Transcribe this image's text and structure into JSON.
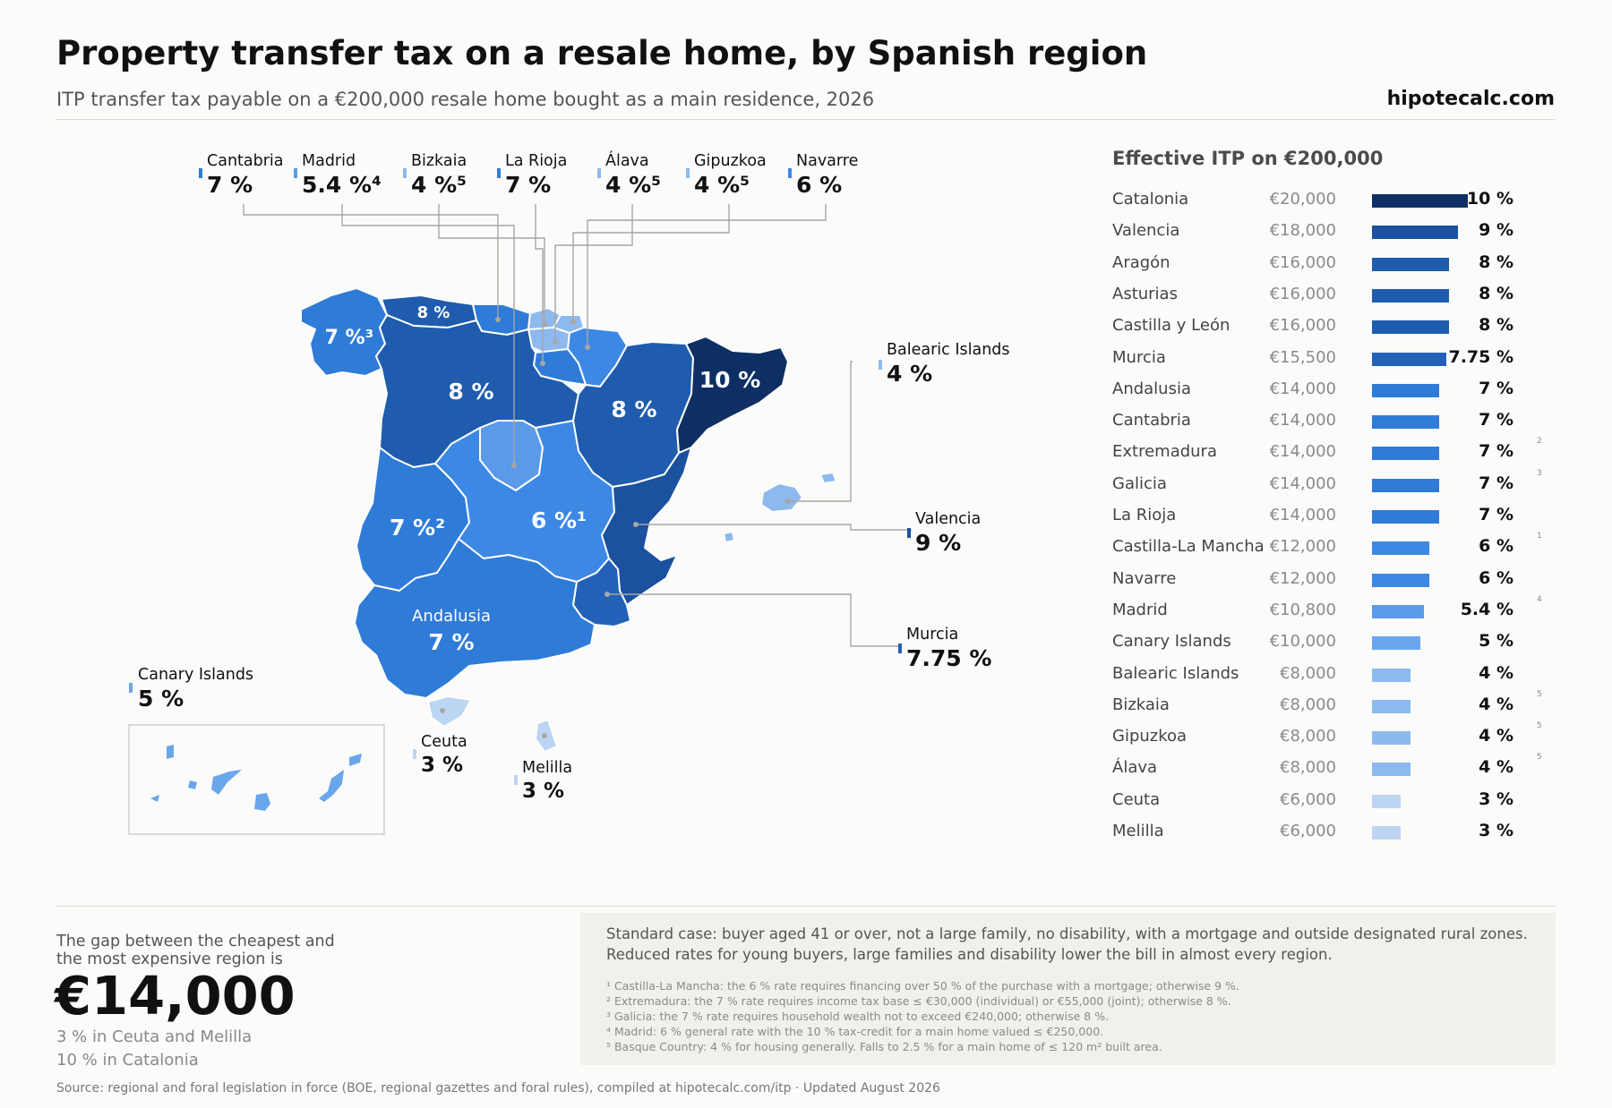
{
  "header": {
    "title": "Property transfer tax on a resale home, by Spanish region",
    "subtitle": "ITP transfer tax payable on a €200,000 resale home bought as a main residence, 2026",
    "brand": "hipotecalc.com"
  },
  "colors": {
    "10": "#0d2f63",
    "9": "#1b519e",
    "8": "#1f5cad",
    "7.75": "#2361b8",
    "7": "#2f7bd8",
    "6": "#3d88e5",
    "5.4": "#5b9ae9",
    "5": "#6aa6ec",
    "4": "#8db9ee",
    "3": "#bcd5f3"
  },
  "map": {
    "labels_on_map": [
      {
        "id": "galicia",
        "text": "7 %³"
      },
      {
        "id": "asturias",
        "text": "8 %"
      },
      {
        "id": "castilla-leon",
        "text": "8 %"
      },
      {
        "id": "aragon",
        "text": "8 %"
      },
      {
        "id": "catalonia",
        "text": "10 %"
      },
      {
        "id": "extremadura",
        "text": "7 %²"
      },
      {
        "id": "castilla-mancha",
        "text": "6 %¹"
      },
      {
        "id": "andalusia-name",
        "text": "Andalusia"
      },
      {
        "id": "andalusia",
        "text": "7 %"
      }
    ],
    "callouts": [
      {
        "name": "Cantabria",
        "rate": "7 %",
        "rate_key": "7"
      },
      {
        "name": "Madrid",
        "rate": "5.4 %⁴",
        "rate_key": "5.4"
      },
      {
        "name": "Bizkaia",
        "rate": "4 %⁵",
        "rate_key": "4"
      },
      {
        "name": "La Rioja",
        "rate": "7 %",
        "rate_key": "7"
      },
      {
        "name": "Álava",
        "rate": "4 %⁵",
        "rate_key": "4"
      },
      {
        "name": "Gipuzkoa",
        "rate": "4 %⁵",
        "rate_key": "4"
      },
      {
        "name": "Navarre",
        "rate": "6 %",
        "rate_key": "6"
      },
      {
        "name": "Balearic Islands",
        "rate": "4 %",
        "rate_key": "4"
      },
      {
        "name": "Valencia",
        "rate": "9 %",
        "rate_key": "9"
      },
      {
        "name": "Murcia",
        "rate": "7.75 %",
        "rate_key": "7.75"
      },
      {
        "name": "Canary Islands",
        "rate": "5 %",
        "rate_key": "5"
      },
      {
        "name": "Ceuta",
        "rate": "3 %",
        "rate_key": "3"
      },
      {
        "name": "Melilla",
        "rate": "3 %",
        "rate_key": "3"
      }
    ]
  },
  "ranking": {
    "title": "Effective ITP on €200,000",
    "max_rate": 10,
    "rows": [
      {
        "region": "Catalonia",
        "amount": "€20,000",
        "rate": "10 %",
        "rate_value": 10,
        "note": ""
      },
      {
        "region": "Valencia",
        "amount": "€18,000",
        "rate": "9 %",
        "rate_value": 9,
        "note": ""
      },
      {
        "region": "Aragón",
        "amount": "€16,000",
        "rate": "8 %",
        "rate_value": 8,
        "note": ""
      },
      {
        "region": "Asturias",
        "amount": "€16,000",
        "rate": "8 %",
        "rate_value": 8,
        "note": ""
      },
      {
        "region": "Castilla y León",
        "amount": "€16,000",
        "rate": "8 %",
        "rate_value": 8,
        "note": ""
      },
      {
        "region": "Murcia",
        "amount": "€15,500",
        "rate": "7.75 %",
        "rate_value": 7.75,
        "note": ""
      },
      {
        "region": "Andalusia",
        "amount": "€14,000",
        "rate": "7 %",
        "rate_value": 7,
        "note": ""
      },
      {
        "region": "Cantabria",
        "amount": "€14,000",
        "rate": "7 %",
        "rate_value": 7,
        "note": ""
      },
      {
        "region": "Extremadura",
        "amount": "€14,000",
        "rate": "7 %",
        "rate_value": 7,
        "note": "2"
      },
      {
        "region": "Galicia",
        "amount": "€14,000",
        "rate": "7 %",
        "rate_value": 7,
        "note": "3"
      },
      {
        "region": "La Rioja",
        "amount": "€14,000",
        "rate": "7 %",
        "rate_value": 7,
        "note": ""
      },
      {
        "region": "Castilla-La Mancha",
        "amount": "€12,000",
        "rate": "6 %",
        "rate_value": 6,
        "note": "1"
      },
      {
        "region": "Navarre",
        "amount": "€12,000",
        "rate": "6 %",
        "rate_value": 6,
        "note": ""
      },
      {
        "region": "Madrid",
        "amount": "€10,800",
        "rate": "5.4 %",
        "rate_value": 5.4,
        "note": "4"
      },
      {
        "region": "Canary Islands",
        "amount": "€10,000",
        "rate": "5 %",
        "rate_value": 5,
        "note": ""
      },
      {
        "region": "Balearic Islands",
        "amount": "€8,000",
        "rate": "4 %",
        "rate_value": 4,
        "note": ""
      },
      {
        "region": "Bizkaia",
        "amount": "€8,000",
        "rate": "4 %",
        "rate_value": 4,
        "note": "5"
      },
      {
        "region": "Gipuzkoa",
        "amount": "€8,000",
        "rate": "4 %",
        "rate_value": 4,
        "note": "5"
      },
      {
        "region": "Álava",
        "amount": "€8,000",
        "rate": "4 %",
        "rate_value": 4,
        "note": "5"
      },
      {
        "region": "Ceuta",
        "amount": "€6,000",
        "rate": "3 %",
        "rate_value": 3,
        "note": ""
      },
      {
        "region": "Melilla",
        "amount": "€6,000",
        "rate": "3 %",
        "rate_value": 3,
        "note": ""
      }
    ]
  },
  "gap": {
    "label": "The gap between the cheapest and the most expensive region is",
    "value": "€14,000",
    "min_line": "3 % in Ceuta and Melilla",
    "max_line": "10 % in Catalonia"
  },
  "notes": {
    "standard_case": "Standard case: buyer aged 41 or over, not a large family, no disability, with a mortgage and outside designated rural zones. Reduced rates for young buyers, large families and disability lower the bill in almost every region.",
    "footnotes": [
      "¹ Castilla-La Mancha: the 6 % rate requires financing over 50 % of the purchase with a mortgage; otherwise 9 %.",
      "² Extremadura: the 7 % rate requires income tax base ≤ €30,000 (individual) or €55,000 (joint); otherwise 8 %.",
      "³ Galicia: the 7 % rate requires household wealth not to exceed €240,000; otherwise 8 %.",
      "⁴ Madrid: 6 % general rate with the 10 % tax-credit for a main home valued ≤ €250,000.",
      "⁵ Basque Country: 4 % for housing generally. Falls to 2.5 % for a main home of ≤ 120 m² built area."
    ]
  },
  "source": "Source: regional and foral legislation in force (BOE, regional gazettes and foral rules), compiled at hipotecalc.com/itp · Updated August 2026"
}
